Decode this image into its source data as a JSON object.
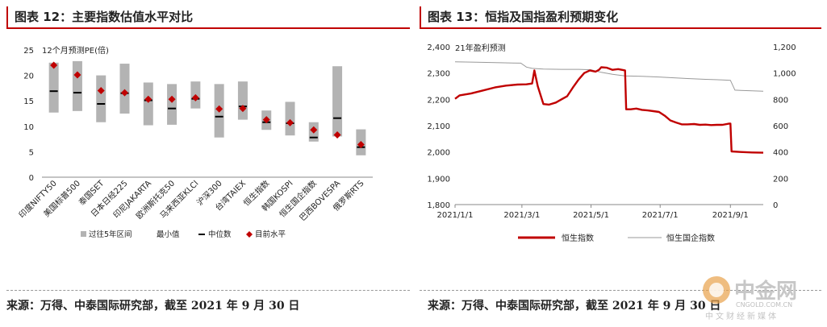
{
  "left": {
    "title": "图表 12：主要指数估值水平对比",
    "source": "来源：万得、中泰国际研究部，截至 2021 年 9 月 30 日",
    "unit_note": "12个月预测PE(倍)"
  },
  "right": {
    "title": "图表 13：恒指及国指盈利预期变化",
    "source": "来源：万得、中泰国际研究部，截至 2021 年 9 月 30 日",
    "series_note": "21年盈利预测"
  },
  "watermark": {
    "brand": "中金网",
    "domain": "CNGOLD.COM.CN",
    "tagline": "中文财经新媒体"
  },
  "colors": {
    "accent": "#c00000",
    "box": "#b3b3b3",
    "median": "#000000",
    "current": "#c00000",
    "line2": "#999999"
  },
  "chart_data": [
    {
      "type": "box",
      "ylim": [
        0,
        25
      ],
      "yticks": [
        0,
        5,
        10,
        15,
        20,
        25
      ],
      "legend": [
        "过往5年区间",
        "最小值",
        "中位数",
        "目前水平"
      ],
      "categories": [
        "印度NIFTY50",
        "美国标普500",
        "泰国SET",
        "日本日经225",
        "印尼JAKARTA",
        "欧洲斯托克50",
        "马来西亚KLCI",
        "沪深300",
        "台湾TAIEX",
        "恒生指数",
        "韩国KOSPI",
        "恒生国企指数",
        "巴西BOVESPA",
        "俄罗斯RTS"
      ],
      "range_low": [
        12.7,
        13.0,
        10.8,
        12.5,
        10.2,
        10.3,
        13.5,
        7.8,
        11.3,
        9.3,
        8.2,
        7.0,
        8.0,
        4.3
      ],
      "range_high": [
        22.5,
        22.8,
        20.0,
        22.3,
        18.6,
        18.3,
        18.8,
        18.3,
        18.8,
        13.1,
        14.8,
        10.8,
        21.8,
        9.4
      ],
      "median": [
        16.9,
        16.6,
        14.4,
        16.5,
        15.1,
        13.5,
        15.4,
        11.9,
        13.9,
        10.8,
        10.6,
        7.8,
        11.6,
        5.9
      ],
      "current": [
        22.0,
        20.1,
        17.0,
        16.6,
        15.3,
        15.3,
        15.6,
        13.4,
        13.5,
        11.3,
        10.7,
        9.3,
        8.3,
        6.4
      ]
    },
    {
      "type": "line",
      "x_ticks": [
        "2021/1/1",
        "2021/3/1",
        "2021/5/1",
        "2021/7/1",
        "2021/9/1"
      ],
      "y_left": {
        "ylim": [
          1800,
          2400
        ],
        "ticks": [
          "1,800",
          "1,900",
          "2,000",
          "2,100",
          "2,200",
          "2,300",
          "2,400"
        ]
      },
      "y_right": {
        "ylim": [
          0,
          1200
        ],
        "ticks": [
          "0",
          "200",
          "400",
          "600",
          "800",
          "1,000",
          "1,200"
        ]
      },
      "series": [
        {
          "name": "恒生指数",
          "axis": "left",
          "x": [
            "2021-01-01",
            "2021-01-05",
            "2021-01-15",
            "2021-01-25",
            "2021-02-05",
            "2021-02-15",
            "2021-02-25",
            "2021-03-05",
            "2021-03-10",
            "2021-03-12",
            "2021-03-15",
            "2021-03-20",
            "2021-03-25",
            "2021-03-31",
            "2021-04-05",
            "2021-04-10",
            "2021-04-15",
            "2021-04-20",
            "2021-04-25",
            "2021-04-30",
            "2021-05-05",
            "2021-05-08",
            "2021-05-10",
            "2021-05-15",
            "2021-05-20",
            "2021-05-25",
            "2021-05-31",
            "2021-06-01",
            "2021-06-05",
            "2021-06-10",
            "2021-06-15",
            "2021-06-20",
            "2021-06-25",
            "2021-06-30",
            "2021-07-05",
            "2021-07-10",
            "2021-07-15",
            "2021-07-20",
            "2021-07-25",
            "2021-07-31",
            "2021-08-05",
            "2021-08-10",
            "2021-08-15",
            "2021-08-20",
            "2021-08-25",
            "2021-08-31",
            "2021-09-01",
            "2021-09-02",
            "2021-09-10",
            "2021-09-20",
            "2021-09-30"
          ],
          "values": [
            2202,
            2215,
            2222,
            2233,
            2245,
            2252,
            2256,
            2257,
            2260,
            2310,
            2250,
            2182,
            2180,
            2188,
            2200,
            2212,
            2245,
            2275,
            2300,
            2310,
            2305,
            2312,
            2322,
            2320,
            2312,
            2315,
            2310,
            2162,
            2162,
            2165,
            2160,
            2158,
            2155,
            2152,
            2138,
            2120,
            2112,
            2105,
            2105,
            2106,
            2103,
            2104,
            2102,
            2103,
            2103,
            2108,
            2108,
            2002,
            2000,
            1998,
            1997
          ]
        },
        {
          "name": "恒生国企指数",
          "axis": "right",
          "x": [
            "2021-01-01",
            "2021-01-20",
            "2021-02-10",
            "2021-02-28",
            "2021-03-05",
            "2021-03-10",
            "2021-03-20",
            "2021-04-05",
            "2021-04-20",
            "2021-05-01",
            "2021-05-10",
            "2021-05-20",
            "2021-05-31",
            "2021-06-15",
            "2021-06-30",
            "2021-07-10",
            "2021-07-25",
            "2021-08-10",
            "2021-08-25",
            "2021-09-01",
            "2021-09-05",
            "2021-09-10",
            "2021-09-20",
            "2021-09-30"
          ],
          "values": [
            1085,
            1082,
            1078,
            1075,
            1045,
            1035,
            1030,
            1028,
            1028,
            1025,
            1005,
            990,
            978,
            975,
            970,
            965,
            958,
            952,
            948,
            945,
            870,
            868,
            865,
            862
          ]
        }
      ]
    }
  ]
}
